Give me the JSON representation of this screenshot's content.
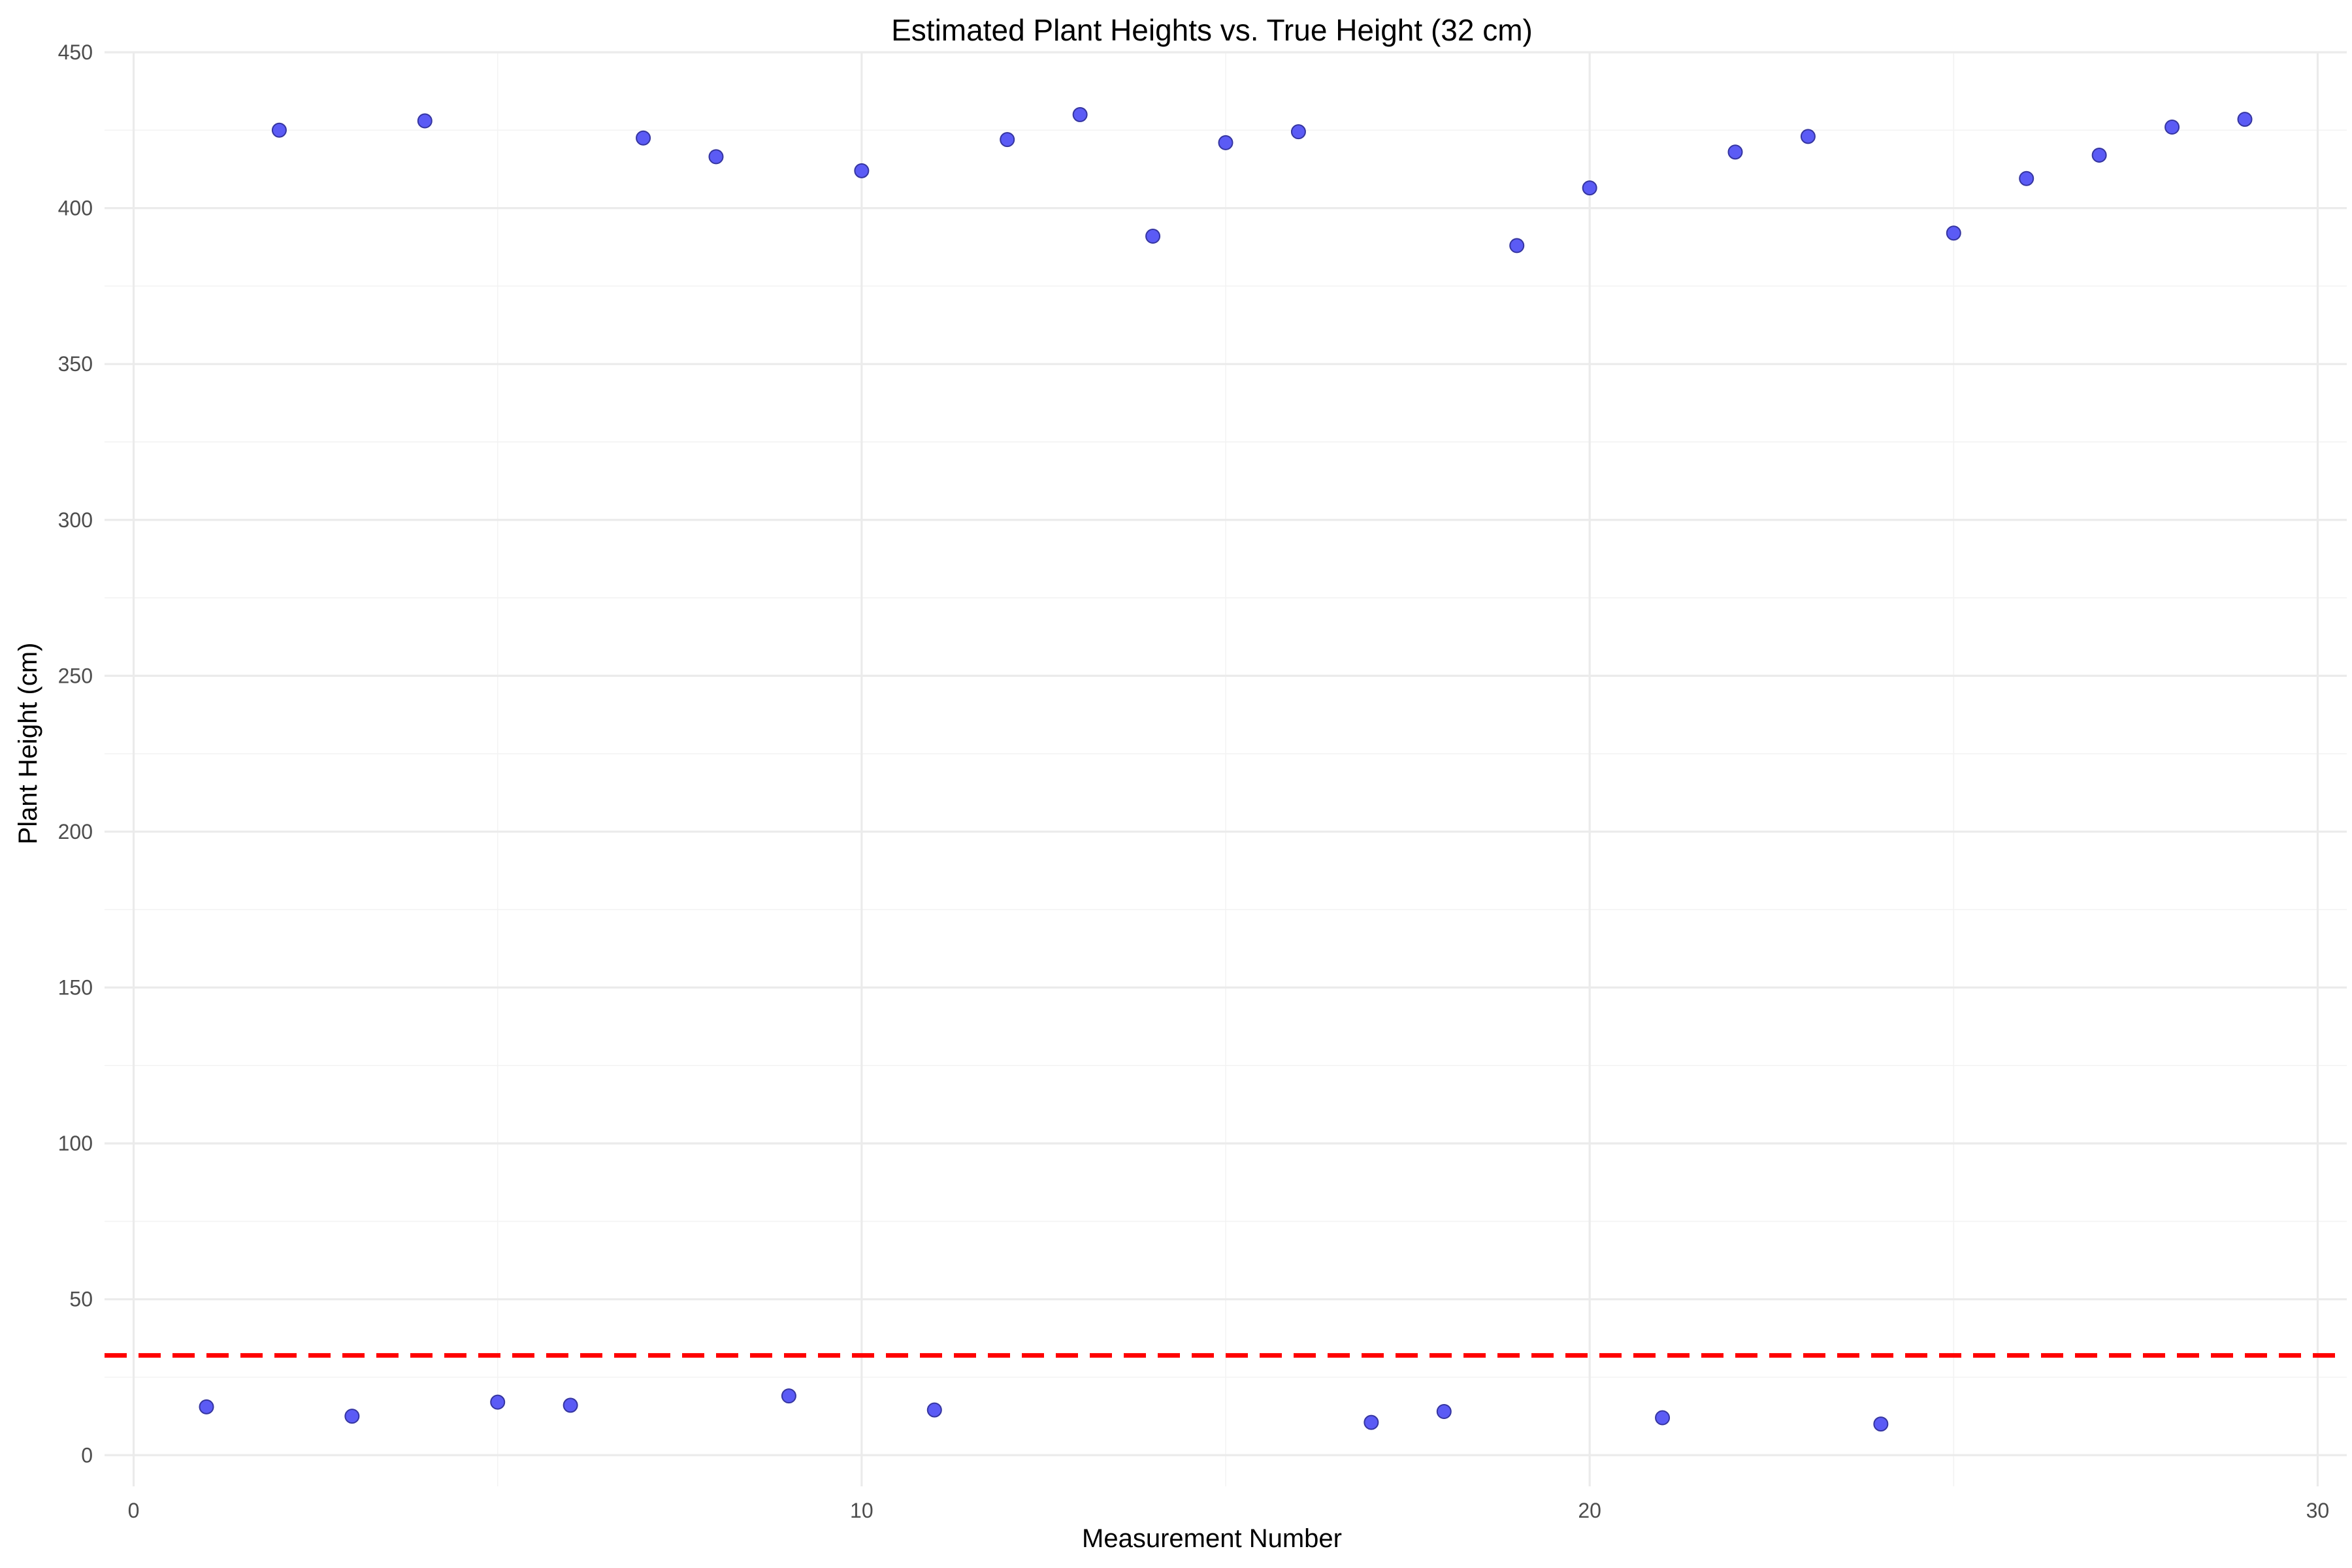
{
  "chart_data": {
    "type": "scatter",
    "title": "Estimated Plant Heights vs. True Height (32 cm)",
    "xlabel": "Measurement Number",
    "ylabel": "Plant Height (cm)",
    "xlim": [
      -0.4,
      30.4
    ],
    "ylim": [
      -10,
      450
    ],
    "x_ticks": [
      0,
      10,
      20,
      30
    ],
    "y_ticks": [
      0,
      50,
      100,
      150,
      200,
      250,
      300,
      350,
      400,
      450
    ],
    "x_minor_ticks": [
      5,
      15,
      25
    ],
    "y_minor_ticks": [
      25,
      75,
      125,
      175,
      225,
      275,
      325,
      375,
      425
    ],
    "grid": true,
    "legend": "none",
    "point_color": "#5b5bf5",
    "reference_line": {
      "y": 32,
      "style": "dashed",
      "color": "#ff0000"
    },
    "points": [
      {
        "x": 1,
        "y": 15.5
      },
      {
        "x": 2,
        "y": 425
      },
      {
        "x": 3,
        "y": 12.5
      },
      {
        "x": 4,
        "y": 428
      },
      {
        "x": 5,
        "y": 17
      },
      {
        "x": 6,
        "y": 16
      },
      {
        "x": 7,
        "y": 422.5
      },
      {
        "x": 8,
        "y": 416.5
      },
      {
        "x": 9,
        "y": 19
      },
      {
        "x": 10,
        "y": 412
      },
      {
        "x": 11,
        "y": 14.5
      },
      {
        "x": 12,
        "y": 422
      },
      {
        "x": 13,
        "y": 430
      },
      {
        "x": 14,
        "y": 391
      },
      {
        "x": 15,
        "y": 421
      },
      {
        "x": 16,
        "y": 424.5
      },
      {
        "x": 17,
        "y": 10.5
      },
      {
        "x": 18,
        "y": 14
      },
      {
        "x": 19,
        "y": 388
      },
      {
        "x": 20,
        "y": 406.5
      },
      {
        "x": 21,
        "y": 12
      },
      {
        "x": 22,
        "y": 418
      },
      {
        "x": 23,
        "y": 423
      },
      {
        "x": 24,
        "y": 10
      },
      {
        "x": 25,
        "y": 392
      },
      {
        "x": 26,
        "y": 409.5
      },
      {
        "x": 27,
        "y": 417
      },
      {
        "x": 28,
        "y": 426
      },
      {
        "x": 29,
        "y": 428.5
      }
    ]
  }
}
